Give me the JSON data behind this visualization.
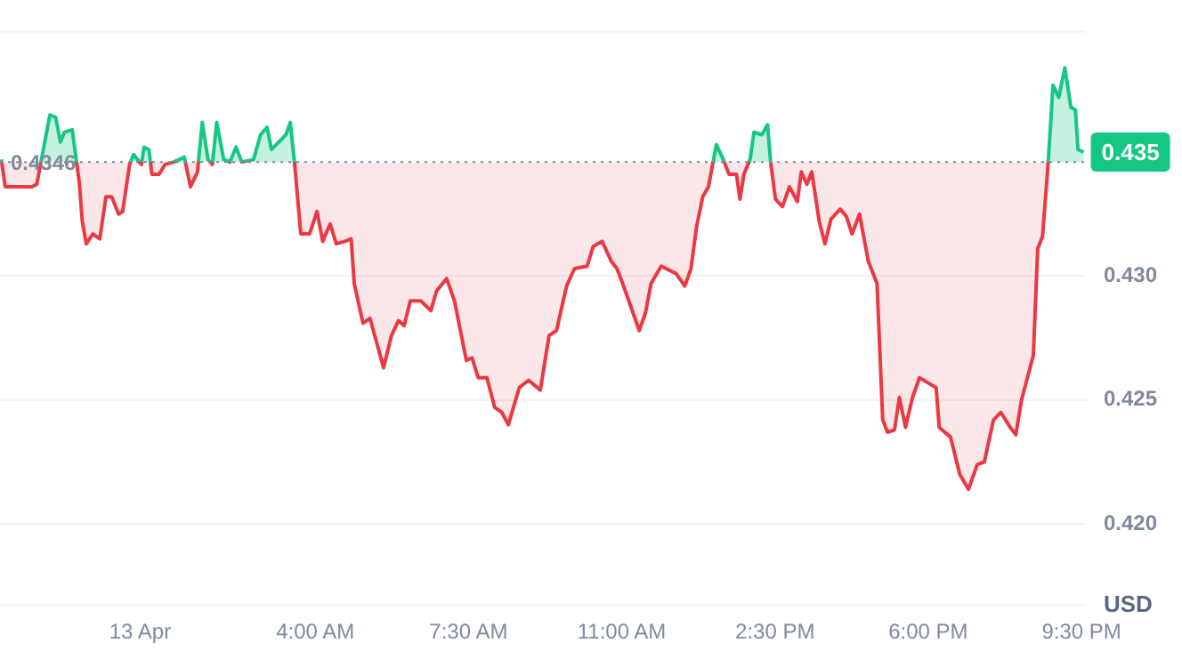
{
  "chart_data": {
    "type": "area",
    "ylabel": "USD",
    "x": [
      -3.17,
      -3.08,
      -2.87,
      -2.47,
      -2.36,
      -2.2,
      -2.06,
      -1.93,
      -1.82,
      -1.73,
      -1.55,
      -1.46,
      -1.39,
      -1.32,
      -1.23,
      -1.08,
      -0.92,
      -0.78,
      -0.65,
      -0.49,
      -0.4,
      -0.24,
      -0.15,
      0.03,
      0.09,
      0.2,
      0.27,
      0.43,
      0.57,
      0.77,
      1.01,
      1.15,
      1.31,
      1.42,
      1.55,
      1.65,
      1.75,
      1.91,
      2.05,
      2.19,
      2.32,
      2.59,
      2.75,
      2.9,
      3.0,
      3.33,
      3.43,
      3.53,
      3.67,
      3.87,
      4.04,
      4.17,
      4.34,
      4.48,
      4.68,
      4.82,
      4.89,
      5.09,
      5.25,
      5.56,
      5.74,
      5.9,
      6.03,
      6.17,
      6.41,
      6.64,
      6.77,
      7.0,
      7.18,
      7.45,
      7.58,
      7.72,
      7.92,
      8.1,
      8.26,
      8.41,
      8.66,
      8.87,
      9.14,
      9.34,
      9.51,
      9.74,
      9.92,
      10.21,
      10.35,
      10.55,
      10.76,
      10.89,
      11.02,
      11.16,
      11.4,
      11.54,
      11.67,
      11.9,
      12.24,
      12.44,
      12.58,
      12.71,
      12.85,
      12.98,
      13.16,
      13.32,
      13.45,
      13.62,
      13.7,
      13.79,
      13.93,
      14.02,
      14.2,
      14.33,
      14.4,
      14.51,
      14.67,
      14.83,
      15.01,
      15.1,
      15.23,
      15.34,
      15.51,
      15.64,
      15.78,
      15.99,
      16.13,
      16.26,
      16.43,
      16.63,
      16.83,
      16.96,
      17.07,
      17.23,
      17.34,
      17.48,
      17.64,
      17.8,
      18.18,
      18.25,
      18.51,
      18.72,
      18.92,
      19.12,
      19.28,
      19.49,
      19.66,
      19.87,
      20.0,
      20.13,
      20.4,
      20.5,
      20.61,
      20.74,
      20.85,
      20.98,
      21.12,
      21.26,
      21.36,
      21.42,
      21.55
    ],
    "series": [
      {
        "values": [
          0.4347,
          0.4336,
          0.4336,
          0.4336,
          0.4337,
          0.4352,
          0.4365,
          0.4364,
          0.4354,
          0.4358,
          0.4359,
          0.4347,
          0.4338,
          0.4322,
          0.4313,
          0.4317,
          0.4315,
          0.4332,
          0.4332,
          0.4325,
          0.4326,
          0.4345,
          0.4349,
          0.4345,
          0.4352,
          0.4351,
          0.4341,
          0.4341,
          0.4345,
          0.4346,
          0.4348,
          0.4336,
          0.4342,
          0.4362,
          0.4347,
          0.4345,
          0.4362,
          0.4347,
          0.4346,
          0.4352,
          0.4346,
          0.4347,
          0.4357,
          0.436,
          0.4351,
          0.4357,
          0.4362,
          0.4345,
          0.4317,
          0.4317,
          0.4326,
          0.4314,
          0.4321,
          0.4313,
          0.4314,
          0.4315,
          0.4297,
          0.4281,
          0.4283,
          0.4263,
          0.4276,
          0.4282,
          0.428,
          0.429,
          0.429,
          0.4286,
          0.4294,
          0.4299,
          0.429,
          0.4266,
          0.4267,
          0.4259,
          0.4259,
          0.4247,
          0.4245,
          0.424,
          0.4255,
          0.4258,
          0.4254,
          0.4276,
          0.4278,
          0.4296,
          0.4303,
          0.4304,
          0.4312,
          0.4314,
          0.4306,
          0.4303,
          0.4297,
          0.429,
          0.4278,
          0.4285,
          0.4297,
          0.4304,
          0.4301,
          0.4296,
          0.4303,
          0.432,
          0.4332,
          0.4336,
          0.4353,
          0.4347,
          0.4341,
          0.4341,
          0.4331,
          0.4341,
          0.4347,
          0.4358,
          0.4357,
          0.4361,
          0.4346,
          0.4331,
          0.4328,
          0.4336,
          0.433,
          0.4342,
          0.4337,
          0.4342,
          0.4322,
          0.4313,
          0.4323,
          0.4327,
          0.4324,
          0.4317,
          0.4325,
          0.4306,
          0.4297,
          0.4242,
          0.4237,
          0.4238,
          0.4251,
          0.4239,
          0.4251,
          0.4259,
          0.4255,
          0.4239,
          0.4235,
          0.422,
          0.4214,
          0.4224,
          0.4225,
          0.4242,
          0.4245,
          0.4239,
          0.4236,
          0.425,
          0.4268,
          0.4311,
          0.4316,
          0.4346,
          0.4377,
          0.4372,
          0.4384,
          0.4368,
          0.4367,
          0.4351,
          0.435
        ],
        "colors": [
          "#16c784",
          "#ea3943",
          "#ea3943",
          "#ea3943",
          "#ea3943",
          "#16c784",
          "#16c784",
          "#16c784",
          "#16c784",
          "#16c784",
          "#16c784",
          "#16c784",
          "#ea3943",
          "#ea3943",
          "#ea3943",
          "#ea3943",
          "#ea3943",
          "#ea3943",
          "#ea3943",
          "#ea3943",
          "#ea3943",
          "#ea3943",
          "#16c784",
          "#ea3943",
          "#16c784",
          "#16c784",
          "#ea3943",
          "#ea3943",
          "#ea3943",
          "#16c784",
          "#16c784",
          "#ea3943",
          "#ea3943",
          "#16c784",
          "#16c784",
          "#ea3943",
          "#16c784",
          "#16c784",
          "#16c784",
          "#16c784",
          "#16c784",
          "#16c784",
          "#16c784",
          "#16c784",
          "#16c784",
          "#16c784",
          "#16c784",
          "#ea3943",
          "#ea3943",
          "#ea3943",
          "#ea3943",
          "#ea3943",
          "#ea3943",
          "#ea3943",
          "#ea3943",
          "#ea3943",
          "#ea3943",
          "#ea3943",
          "#ea3943",
          "#ea3943",
          "#ea3943",
          "#ea3943",
          "#ea3943",
          "#ea3943",
          "#ea3943",
          "#ea3943",
          "#ea3943",
          "#ea3943",
          "#ea3943",
          "#ea3943",
          "#ea3943",
          "#ea3943",
          "#ea3943",
          "#ea3943",
          "#ea3943",
          "#ea3943",
          "#ea3943",
          "#ea3943",
          "#ea3943",
          "#ea3943",
          "#ea3943",
          "#ea3943",
          "#ea3943",
          "#ea3943",
          "#ea3943",
          "#ea3943",
          "#ea3943",
          "#ea3943",
          "#ea3943",
          "#ea3943",
          "#ea3943",
          "#ea3943",
          "#ea3943",
          "#ea3943",
          "#ea3943",
          "#ea3943",
          "#ea3943",
          "#ea3943",
          "#ea3943",
          "#ea3943",
          "#16c784",
          "#16c784",
          "#ea3943",
          "#ea3943",
          "#ea3943",
          "#ea3943",
          "#16c784",
          "#16c784",
          "#16c784",
          "#16c784",
          "#16c784",
          "#ea3943",
          "#ea3943",
          "#ea3943",
          "#ea3943",
          "#ea3943",
          "#ea3943",
          "#ea3943",
          "#ea3943",
          "#ea3943",
          "#ea3943",
          "#ea3943",
          "#ea3943",
          "#ea3943",
          "#ea3943",
          "#ea3943",
          "#ea3943",
          "#ea3943",
          "#ea3943",
          "#ea3943",
          "#ea3943",
          "#ea3943",
          "#ea3943",
          "#ea3943",
          "#ea3943",
          "#ea3943",
          "#ea3943",
          "#ea3943",
          "#ea3943",
          "#ea3943",
          "#ea3943",
          "#ea3943",
          "#ea3943",
          "#ea3943",
          "#ea3943",
          "#ea3943",
          "#ea3943",
          "#ea3943",
          "#ea3943",
          "#16c784",
          "#16c784",
          "#16c784",
          "#16c784",
          "#16c784",
          "#16c784",
          "#16c784",
          "#16c784"
        ]
      }
    ],
    "xlim": [
      -3.2,
      21.6
    ],
    "xticks": [
      {
        "value": 0,
        "label": "13 Apr"
      },
      {
        "value": 4,
        "label": "4:00 AM"
      },
      {
        "value": 7.5,
        "label": "7:30 AM"
      },
      {
        "value": 11,
        "label": "11:00 AM"
      },
      {
        "value": 14.5,
        "label": "2:30 PM"
      },
      {
        "value": 18,
        "label": "6:00 PM"
      },
      {
        "value": 21.5,
        "label": "9:30 PM"
      }
    ],
    "ylim": [
      0.4167,
      0.4399
    ],
    "yticks": [
      {
        "value": 0.42,
        "label": "0.420"
      },
      {
        "value": 0.425,
        "label": "0.425"
      },
      {
        "value": 0.43,
        "label": "0.430"
      }
    ],
    "grid": "y",
    "legend": false,
    "marker": "none",
    "line_style": "solid",
    "ref_lines": [
      {
        "axis": "y",
        "value": 0.4346,
        "label": "0.4346",
        "color": "#808a9d",
        "line_style": "dotted"
      }
    ],
    "annotations": [
      {
        "text": "0.435",
        "x": 21.55,
        "y": 0.435
      }
    ]
  }
}
